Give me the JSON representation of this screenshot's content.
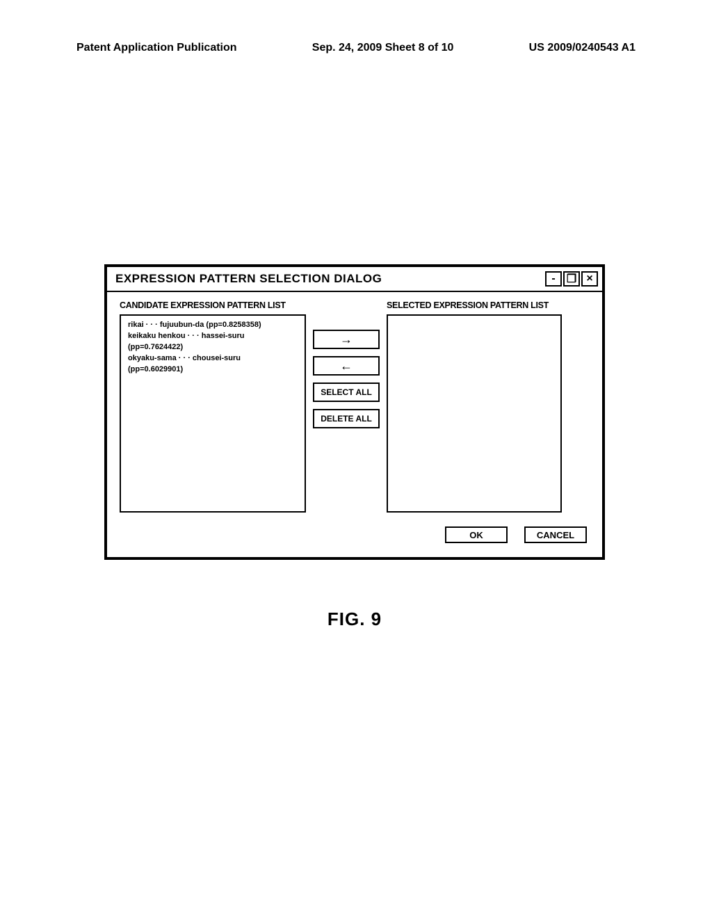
{
  "header": {
    "left": "Patent Application Publication",
    "center": "Sep. 24, 2009  Sheet 8 of 10",
    "right": "US 2009/0240543 A1"
  },
  "dialog": {
    "title": "EXPRESSION PATTERN SELECTION DIALOG",
    "window_controls": {
      "minimize": "-",
      "maximize": "❐",
      "close": "×"
    },
    "left_list": {
      "label": "CANDIDATE EXPRESSION PATTERN LIST",
      "items": [
        "rikai · · · fujuubun-da (pp=0.8258358)",
        "keikaku henkou · · · hassei-suru (pp=0.7624422)",
        "okyaku-sama · · · chousei-suru (pp=0.6029901)"
      ]
    },
    "right_list": {
      "label": "SELECTED EXPRESSION PATTERN LIST"
    },
    "middle_buttons": {
      "move_right": "→",
      "move_left": "←",
      "select_all": "SELECT ALL",
      "delete_all": "DELETE ALL"
    },
    "bottom_buttons": {
      "ok": "OK",
      "cancel": "CANCEL"
    }
  },
  "figure_caption": "FIG. 9"
}
